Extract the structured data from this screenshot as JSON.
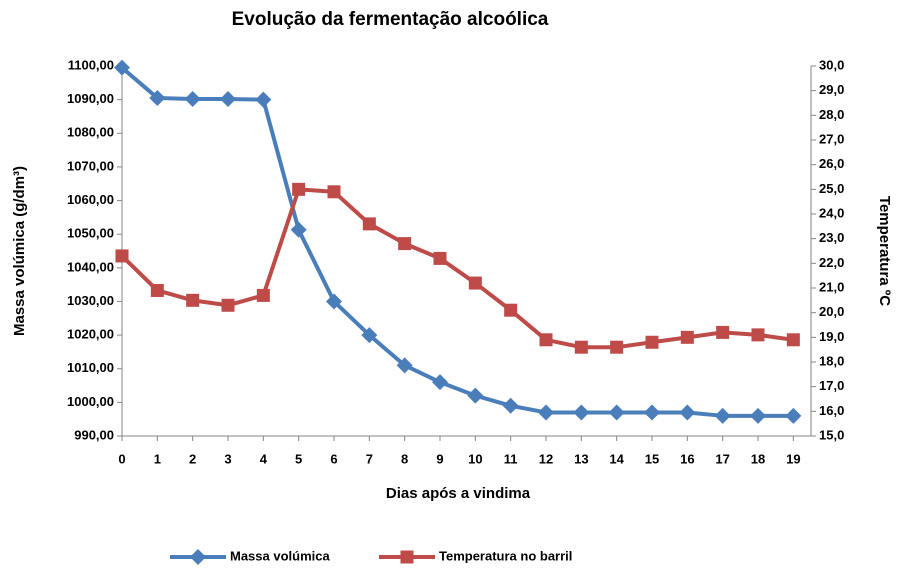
{
  "chart_data": {
    "type": "line",
    "title": "Evolução da fermentação alcoólica",
    "x_label": "Dias após a vindima",
    "y_label": "Massa volúmica (g/dm³)",
    "y2_label": "Temperatura ºC",
    "categories": [
      "0",
      "1",
      "2",
      "3",
      "4",
      "5",
      "6",
      "7",
      "8",
      "9",
      "10",
      "11",
      "12",
      "13",
      "14",
      "15",
      "16",
      "17",
      "18",
      "19"
    ],
    "series": [
      {
        "name": "Massa volúmica",
        "color": "#4a7ebb",
        "marker": "diamond",
        "axis": "y",
        "values": [
          1099.5,
          1090.5,
          1090.2,
          1090.2,
          1090,
          1051.3,
          1030,
          1020,
          1011,
          1006,
          1002,
          999,
          997,
          997,
          997,
          997,
          997,
          996,
          996,
          996
        ]
      },
      {
        "name": "Temperatura no barril",
        "color": "#be4b48",
        "marker": "square",
        "axis": "y2",
        "values": [
          22.3,
          20.9,
          20.5,
          20.3,
          20.7,
          25.0,
          24.9,
          23.6,
          22.8,
          22.2,
          21.2,
          20.1,
          18.9,
          18.6,
          18.6,
          18.8,
          19.0,
          19.2,
          19.1,
          18.9
        ]
      }
    ],
    "ylim": [
      990,
      1100
    ],
    "yticks": [
      {
        "value": 990,
        "label": "990,00"
      },
      {
        "value": 1000,
        "label": "1000,00"
      },
      {
        "value": 1010,
        "label": "1010,00"
      },
      {
        "value": 1020,
        "label": "1020,00"
      },
      {
        "value": 1030,
        "label": "1030,00"
      },
      {
        "value": 1040,
        "label": "1040,00"
      },
      {
        "value": 1050,
        "label": "1050,00"
      },
      {
        "value": 1060,
        "label": "1060,00"
      },
      {
        "value": 1070,
        "label": "1070,00"
      },
      {
        "value": 1080,
        "label": "1080,00"
      },
      {
        "value": 1090,
        "label": "1090,00"
      },
      {
        "value": 1100,
        "label": "1100,00"
      }
    ],
    "y2lim": [
      15,
      30
    ],
    "y2ticks": [
      {
        "value": 15,
        "label": "15,0"
      },
      {
        "value": 16,
        "label": "16,0"
      },
      {
        "value": 17,
        "label": "17,0"
      },
      {
        "value": 18,
        "label": "18,0"
      },
      {
        "value": 19,
        "label": "19,0"
      },
      {
        "value": 20,
        "label": "20,0"
      },
      {
        "value": 21,
        "label": "21,0"
      },
      {
        "value": 22,
        "label": "22,0"
      },
      {
        "value": 23,
        "label": "23,0"
      },
      {
        "value": 24,
        "label": "24,0"
      },
      {
        "value": 25,
        "label": "25,0"
      },
      {
        "value": 26,
        "label": "26,0"
      },
      {
        "value": 27,
        "label": "27,0"
      },
      {
        "value": 28,
        "label": "28,0"
      },
      {
        "value": 29,
        "label": "29,0"
      },
      {
        "value": 30,
        "label": "30,0"
      }
    ],
    "grid": false,
    "legend": "bottom"
  }
}
